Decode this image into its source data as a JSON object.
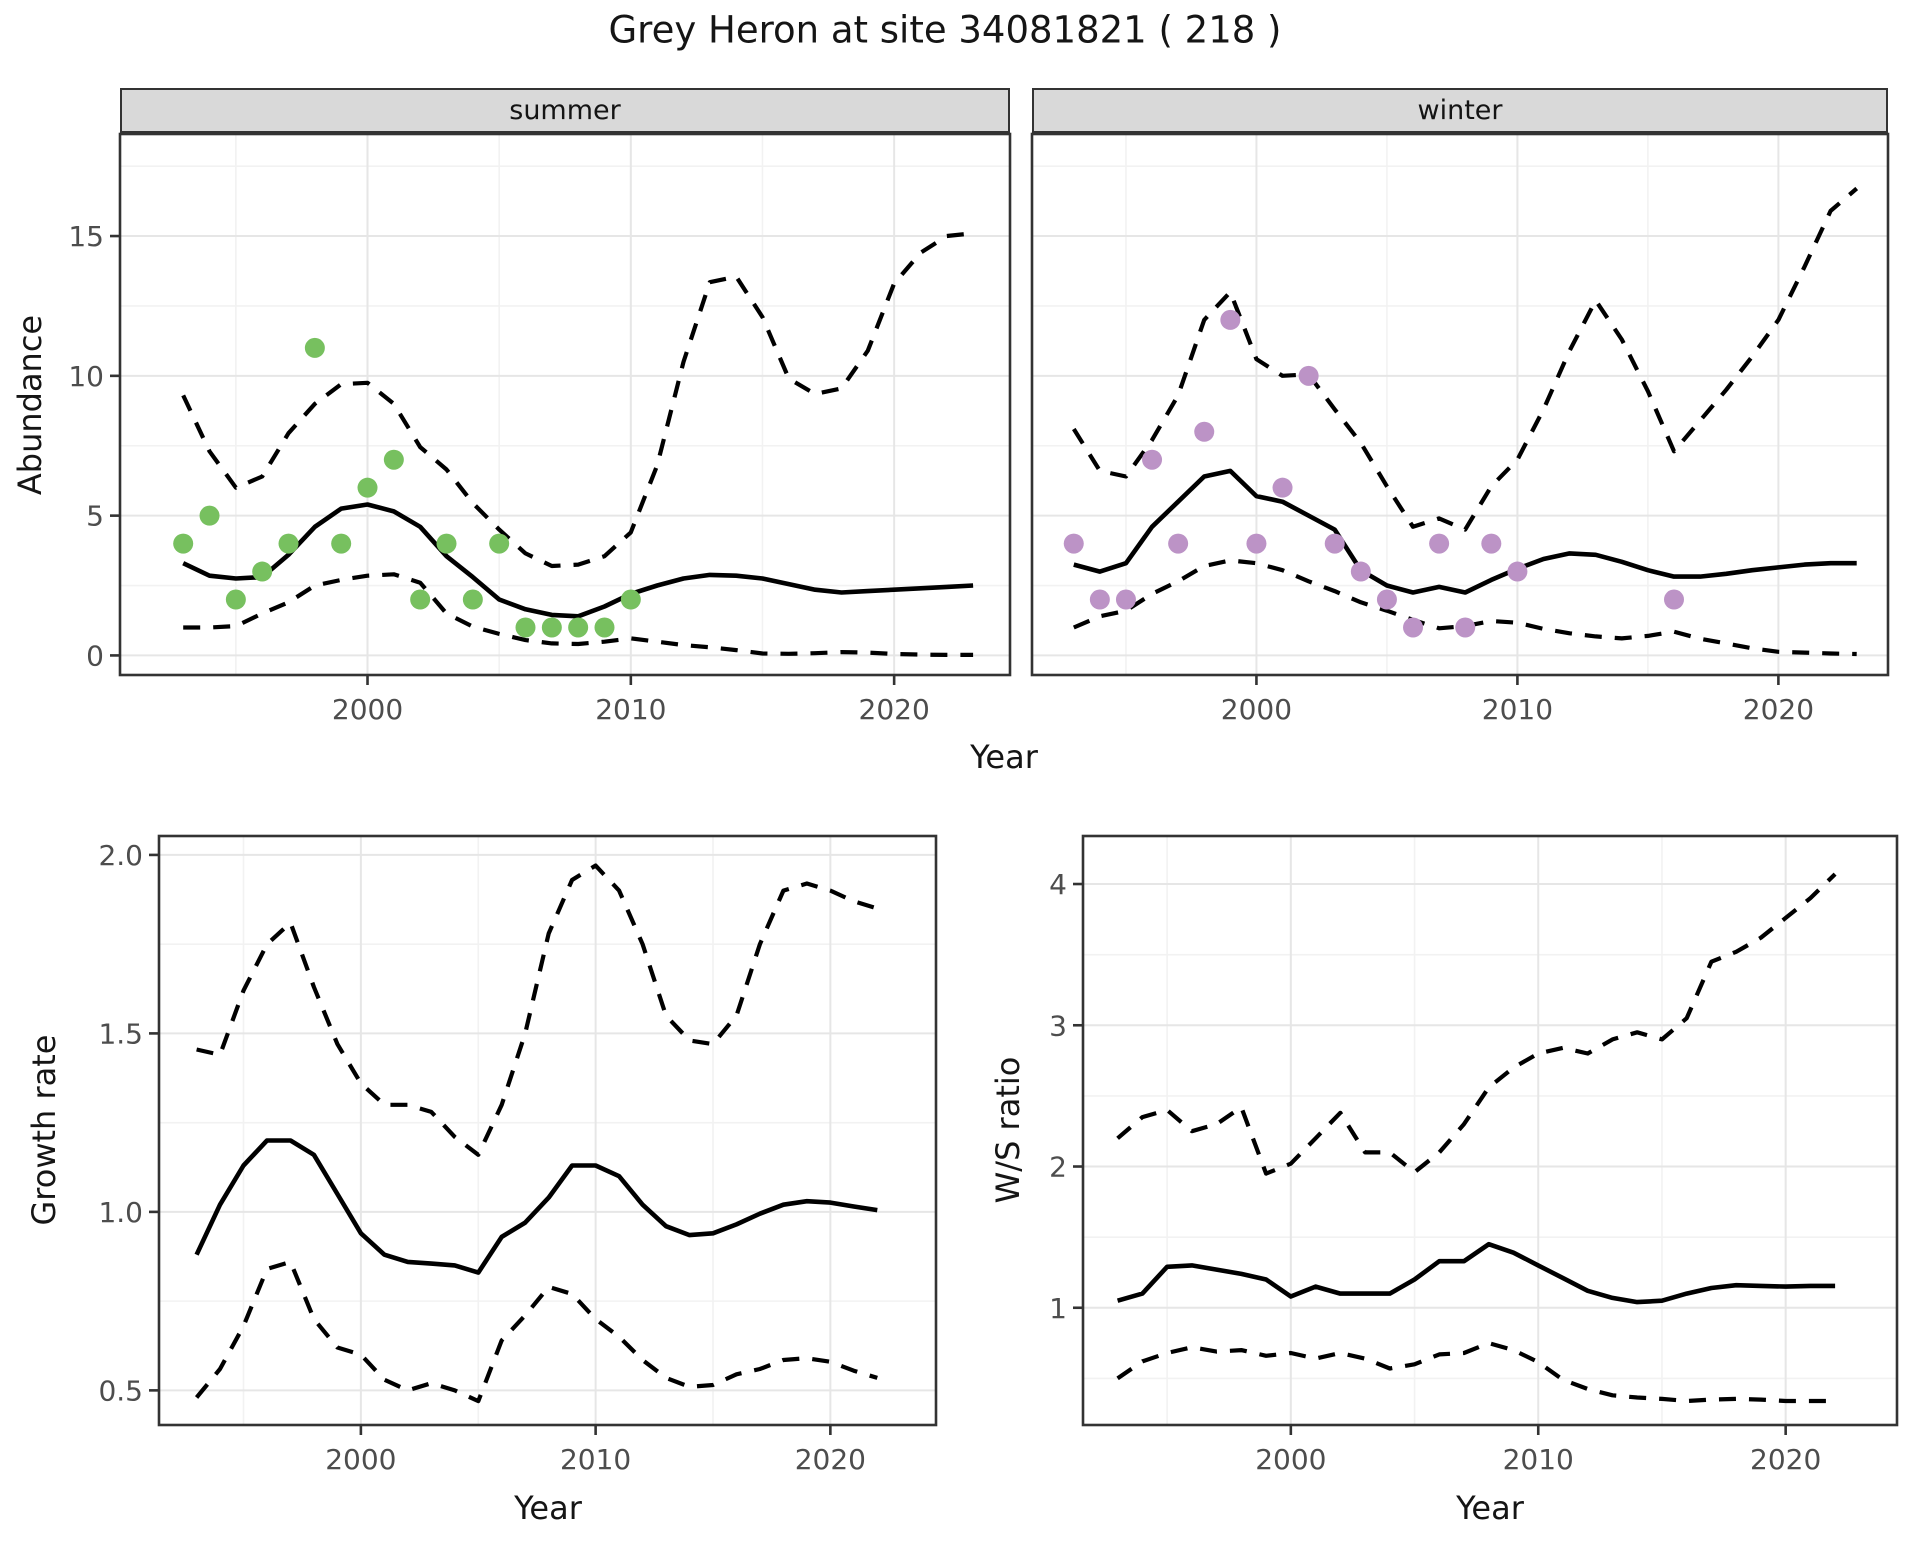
{
  "page": {
    "title": "Grey Heron at site 34081821 ( 218 )"
  },
  "labels": {
    "abundance": "Abundance",
    "growth_rate": "Growth rate",
    "ws_ratio": "W/S ratio",
    "year": "Year"
  },
  "facets": {
    "summer": "summer",
    "winter": "winter"
  },
  "colors": {
    "summer_points": "#77c05f",
    "winter_points": "#bc93c6",
    "fit_line": "#000000",
    "ci_line": "#000000",
    "strip_bg": "#d9d9d9",
    "grid_major": "#e6e6e6",
    "grid_minor": "#f2f2f2",
    "panel_border": "#333333",
    "tick_text": "#4d4d4d",
    "tick_mark": "#333333"
  },
  "chart_data": [
    {
      "id": "abundance-summer",
      "type": "scatter",
      "strip": "summer",
      "xlabel": "Year",
      "ylabel": "Abundance",
      "x_range": [
        1990.6,
        2024.4
      ],
      "y_range": [
        -0.7,
        18.65
      ],
      "x_ticks": {
        "values": [
          2000,
          2010,
          2020
        ],
        "labels": [
          "2000",
          "2010",
          "2020"
        ],
        "minor": [
          1995,
          2005,
          2015
        ]
      },
      "y_ticks": {
        "values": [
          0,
          5,
          10,
          15
        ],
        "labels": [
          "0",
          "5",
          "10",
          "15"
        ],
        "minor": [
          2.5,
          7.5,
          12.5,
          17.5
        ]
      },
      "points": {
        "name": "observed-abundance-summer",
        "data": [
          [
            1993,
            4
          ],
          [
            1994,
            5
          ],
          [
            1995,
            2
          ],
          [
            1996,
            3
          ],
          [
            1997,
            4
          ],
          [
            1998,
            11
          ],
          [
            1999,
            4
          ],
          [
            2000,
            6
          ],
          [
            2001,
            7
          ],
          [
            2002,
            2
          ],
          [
            2003,
            4
          ],
          [
            2004,
            2
          ],
          [
            2005,
            4
          ],
          [
            2006,
            1
          ],
          [
            2007,
            1
          ],
          [
            2008,
            1
          ],
          [
            2009,
            1
          ],
          [
            2010,
            2
          ]
        ]
      },
      "fit": {
        "start_year": 1993,
        "values": [
          3.3,
          2.85,
          2.75,
          2.8,
          3.6,
          4.6,
          5.25,
          5.4,
          5.15,
          4.6,
          3.55,
          2.8,
          2.0,
          1.65,
          1.45,
          1.4,
          1.75,
          2.2,
          2.5,
          2.75,
          2.88,
          2.85,
          2.75,
          2.55,
          2.35,
          2.25,
          2.3,
          2.35,
          2.4,
          2.45,
          2.5
        ]
      },
      "ci_upper": {
        "start_year": 1993,
        "values": [
          9.3,
          7.3,
          6.0,
          6.4,
          7.95,
          9.0,
          9.7,
          9.75,
          9.0,
          7.45,
          6.65,
          5.45,
          4.5,
          3.65,
          3.2,
          3.25,
          3.55,
          4.4,
          6.8,
          10.5,
          13.35,
          13.55,
          12.1,
          9.9,
          9.35,
          9.55,
          10.9,
          13.3,
          14.4,
          15.0,
          15.1
        ]
      },
      "ci_lower": {
        "start_year": 1993,
        "values": [
          1.0,
          1.0,
          1.05,
          1.5,
          1.9,
          2.5,
          2.7,
          2.85,
          2.9,
          2.6,
          1.5,
          1.03,
          0.77,
          0.55,
          0.43,
          0.41,
          0.49,
          0.61,
          0.49,
          0.37,
          0.29,
          0.19,
          0.07,
          0.06,
          0.08,
          0.12,
          0.1,
          0.05,
          0.03,
          0.02,
          0.02
        ]
      }
    },
    {
      "id": "abundance-winter",
      "type": "scatter",
      "strip": "winter",
      "xlabel": "Year",
      "ylabel": "Abundance",
      "x_range": [
        1991.4,
        2024.2
      ],
      "y_range": [
        -0.7,
        18.65
      ],
      "x_ticks": {
        "values": [
          2000,
          2010,
          2020
        ],
        "labels": [
          "2000",
          "2010",
          "2020"
        ],
        "minor": [
          1995,
          2005,
          2015
        ]
      },
      "y_ticks": {
        "values": [
          0,
          5,
          10,
          15
        ],
        "labels": [
          "0",
          "5",
          "10",
          "15"
        ],
        "minor": [
          2.5,
          7.5,
          12.5,
          17.5
        ]
      },
      "points": {
        "name": "observed-abundance-winter",
        "data": [
          [
            1993,
            4
          ],
          [
            1994,
            2
          ],
          [
            1995,
            2
          ],
          [
            1996,
            7
          ],
          [
            1997,
            4
          ],
          [
            1998,
            8
          ],
          [
            1999,
            12
          ],
          [
            2000,
            4
          ],
          [
            2001,
            6
          ],
          [
            2002,
            10
          ],
          [
            2003,
            4
          ],
          [
            2004,
            3
          ],
          [
            2005,
            2
          ],
          [
            2006,
            1
          ],
          [
            2007,
            4
          ],
          [
            2008,
            1
          ],
          [
            2009,
            4
          ],
          [
            2010,
            3
          ],
          [
            2016,
            2
          ]
        ]
      },
      "fit": {
        "start_year": 1993,
        "values": [
          3.25,
          3.0,
          3.3,
          4.6,
          5.5,
          6.4,
          6.6,
          5.7,
          5.5,
          5.0,
          4.5,
          3.05,
          2.5,
          2.25,
          2.45,
          2.25,
          2.7,
          3.1,
          3.45,
          3.65,
          3.6,
          3.35,
          3.05,
          2.82,
          2.82,
          2.92,
          3.05,
          3.15,
          3.25,
          3.3,
          3.3
        ]
      },
      "ci_upper": {
        "start_year": 1993,
        "values": [
          8.1,
          6.6,
          6.4,
          7.7,
          9.3,
          12.0,
          13.0,
          10.6,
          10.0,
          10.05,
          8.8,
          7.6,
          6.05,
          4.6,
          4.9,
          4.5,
          6.05,
          7.0,
          8.8,
          10.9,
          12.7,
          11.3,
          9.45,
          7.3,
          8.4,
          9.5,
          10.7,
          12.0,
          13.9,
          15.9,
          16.7
        ]
      },
      "ci_lower": {
        "start_year": 1993,
        "values": [
          1.0,
          1.4,
          1.6,
          2.2,
          2.65,
          3.2,
          3.4,
          3.3,
          3.05,
          2.65,
          2.3,
          1.9,
          1.6,
          1.27,
          0.97,
          1.05,
          1.23,
          1.17,
          0.95,
          0.79,
          0.68,
          0.61,
          0.7,
          0.85,
          0.6,
          0.43,
          0.25,
          0.13,
          0.1,
          0.07,
          0.05
        ]
      }
    },
    {
      "id": "growth-rate",
      "type": "line",
      "strip": null,
      "xlabel": "Year",
      "ylabel": "Growth rate",
      "x_range": [
        1991.4,
        2024.5
      ],
      "y_range": [
        0.403,
        2.053
      ],
      "x_ticks": {
        "values": [
          2000,
          2010,
          2020
        ],
        "labels": [
          "2000",
          "2010",
          "2020"
        ],
        "minor": [
          1995,
          2005,
          2015
        ]
      },
      "y_ticks": {
        "values": [
          0.5,
          1.0,
          1.5,
          2.0
        ],
        "labels": [
          "0.5",
          "1.0",
          "1.5",
          "2.0"
        ],
        "minor": [
          0.75,
          1.25,
          1.75
        ]
      },
      "points": null,
      "fit": {
        "start_year": 1993,
        "values": [
          0.88,
          1.02,
          1.13,
          1.2,
          1.2,
          1.16,
          1.05,
          0.94,
          0.88,
          0.86,
          0.855,
          0.85,
          0.83,
          0.93,
          0.97,
          1.04,
          1.13,
          1.13,
          1.1,
          1.02,
          0.96,
          0.935,
          0.94,
          0.965,
          0.995,
          1.02,
          1.03,
          1.026,
          1.015,
          1.005
        ]
      },
      "ci_upper": {
        "start_year": 1993,
        "values": [
          1.455,
          1.44,
          1.62,
          1.75,
          1.81,
          1.63,
          1.47,
          1.36,
          1.3,
          1.3,
          1.28,
          1.21,
          1.16,
          1.3,
          1.5,
          1.78,
          1.93,
          1.97,
          1.9,
          1.75,
          1.55,
          1.48,
          1.47,
          1.55,
          1.75,
          1.9,
          1.92,
          1.9,
          1.87,
          1.85
        ]
      },
      "ci_lower": {
        "start_year": 1993,
        "values": [
          0.48,
          0.56,
          0.68,
          0.84,
          0.86,
          0.7,
          0.62,
          0.6,
          0.53,
          0.5,
          0.52,
          0.5,
          0.47,
          0.64,
          0.71,
          0.79,
          0.77,
          0.7,
          0.65,
          0.585,
          0.535,
          0.51,
          0.515,
          0.545,
          0.56,
          0.585,
          0.59,
          0.58,
          0.555,
          0.535
        ]
      }
    },
    {
      "id": "ws-ratio",
      "type": "line",
      "strip": null,
      "xlabel": "Year",
      "ylabel": "W/S ratio",
      "x_range": [
        1991.6,
        2024.5
      ],
      "y_range": [
        0.17,
        4.34
      ],
      "x_ticks": {
        "values": [
          2000,
          2010,
          2020
        ],
        "labels": [
          "2000",
          "2010",
          "2020"
        ],
        "minor": [
          1995,
          2005,
          2015
        ]
      },
      "y_ticks": {
        "values": [
          1,
          2,
          3,
          4
        ],
        "labels": [
          "1",
          "2",
          "3",
          "4"
        ],
        "minor": [
          0.5,
          1.5,
          2.5,
          3.5
        ]
      },
      "points": null,
      "fit": {
        "start_year": 1993,
        "values": [
          1.05,
          1.1,
          1.29,
          1.3,
          1.27,
          1.24,
          1.2,
          1.08,
          1.15,
          1.1,
          1.1,
          1.1,
          1.2,
          1.33,
          1.33,
          1.45,
          1.39,
          1.3,
          1.21,
          1.12,
          1.07,
          1.04,
          1.05,
          1.1,
          1.14,
          1.16,
          1.155,
          1.15,
          1.155,
          1.155
        ]
      },
      "ci_upper": {
        "start_year": 1993,
        "values": [
          2.2,
          2.35,
          2.4,
          2.25,
          2.3,
          2.42,
          1.95,
          2.02,
          2.2,
          2.38,
          2.1,
          2.1,
          1.96,
          2.1,
          2.3,
          2.56,
          2.7,
          2.8,
          2.84,
          2.8,
          2.9,
          2.95,
          2.9,
          3.05,
          3.45,
          3.52,
          3.62,
          3.76,
          3.9,
          4.07
        ]
      },
      "ci_lower": {
        "start_year": 1993,
        "values": [
          0.5,
          0.62,
          0.68,
          0.72,
          0.69,
          0.7,
          0.66,
          0.68,
          0.64,
          0.68,
          0.64,
          0.57,
          0.6,
          0.67,
          0.68,
          0.75,
          0.7,
          0.615,
          0.49,
          0.425,
          0.38,
          0.365,
          0.355,
          0.34,
          0.35,
          0.355,
          0.35,
          0.34,
          0.34,
          0.34
        ]
      }
    }
  ]
}
